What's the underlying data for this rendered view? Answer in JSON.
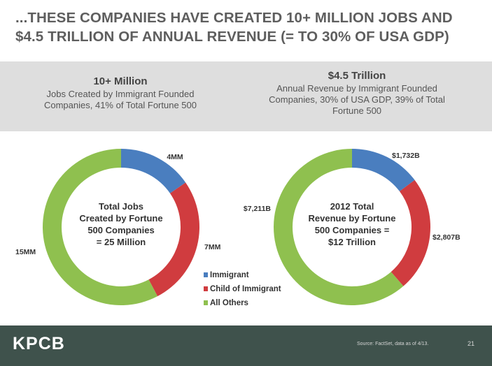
{
  "title": "...THESE COMPANIES HAVE CREATED 10+ MILLION JOBS AND $4.5 TRILLION OF ANNUAL REVENUE (= TO 30% OF USA GDP)",
  "left_header": {
    "big": "10+ Million",
    "small": "Jobs Created by Immigrant Founded Companies, 41% of Total Fortune 500"
  },
  "right_header": {
    "big": "$4.5 Trillion",
    "small": "Annual Revenue by Immigrant Founded Companies, 30% of USA GDP, 39% of Total Fortune 500"
  },
  "colors": {
    "immigrant": "#4a7ebf",
    "child": "#d03c3f",
    "others": "#8fc04f"
  },
  "chart_data": [
    {
      "type": "pie",
      "center_label": [
        "Total Jobs",
        "Created by Fortune",
        "500 Companies",
        "= 25 Million"
      ],
      "categories": [
        "Immigrant",
        "Child of Immigrant",
        "All Others"
      ],
      "values": [
        4,
        7,
        15
      ],
      "data_labels": [
        "4MM",
        "7MM",
        "15MM"
      ],
      "unit": "MM"
    },
    {
      "type": "pie",
      "center_label": [
        "2012 Total",
        "Revenue by Fortune",
        "500 Companies =",
        "$12 Trillion"
      ],
      "categories": [
        "Immigrant",
        "Child of Immigrant",
        "All Others"
      ],
      "values": [
        1732,
        2807,
        7211
      ],
      "data_labels": [
        "$1,732B",
        "$2,807B",
        "$7,211B"
      ],
      "unit": "$B"
    }
  ],
  "legend": [
    "Immigrant",
    "Child of Immigrant",
    "All Others"
  ],
  "footer": {
    "logo": "KPCB",
    "source": "Source: FactSet, data as of 4/13.",
    "page": "21"
  }
}
